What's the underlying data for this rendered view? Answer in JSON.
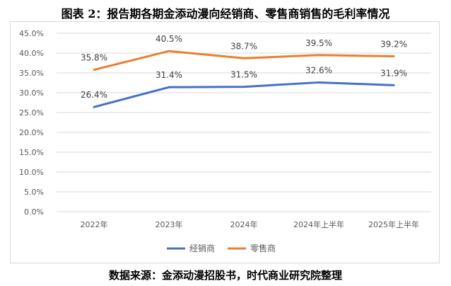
{
  "title": "图表 2：报告期各期金添动漫向经销商、零售商销售的毛利率情况",
  "source": "数据来源：金添动漫招股书，时代商业研究院整理",
  "chart_data": {
    "type": "line",
    "categories": [
      "2022年",
      "2023年",
      "2024年",
      "2024年上半年",
      "2025年上半年"
    ],
    "ylim": [
      0,
      45
    ],
    "ytick_step": 5,
    "ytick_labels": [
      "0.0%",
      "5.0%",
      "10.0%",
      "15.0%",
      "20.0%",
      "25.0%",
      "30.0%",
      "35.0%",
      "40.0%",
      "45.0%"
    ],
    "grid": true,
    "legend_position": "bottom",
    "series": [
      {
        "name": "经销商",
        "values": [
          26.4,
          31.4,
          31.5,
          32.6,
          31.9
        ],
        "labels": [
          "26.4%",
          "31.4%",
          "31.5%",
          "32.6%",
          "31.9%"
        ],
        "color": "#4472C4"
      },
      {
        "name": "零售商",
        "values": [
          35.8,
          40.5,
          38.7,
          39.5,
          39.2
        ],
        "labels": [
          "35.8%",
          "40.5%",
          "38.7%",
          "39.5%",
          "39.2%"
        ],
        "color": "#ED7D31"
      }
    ]
  }
}
